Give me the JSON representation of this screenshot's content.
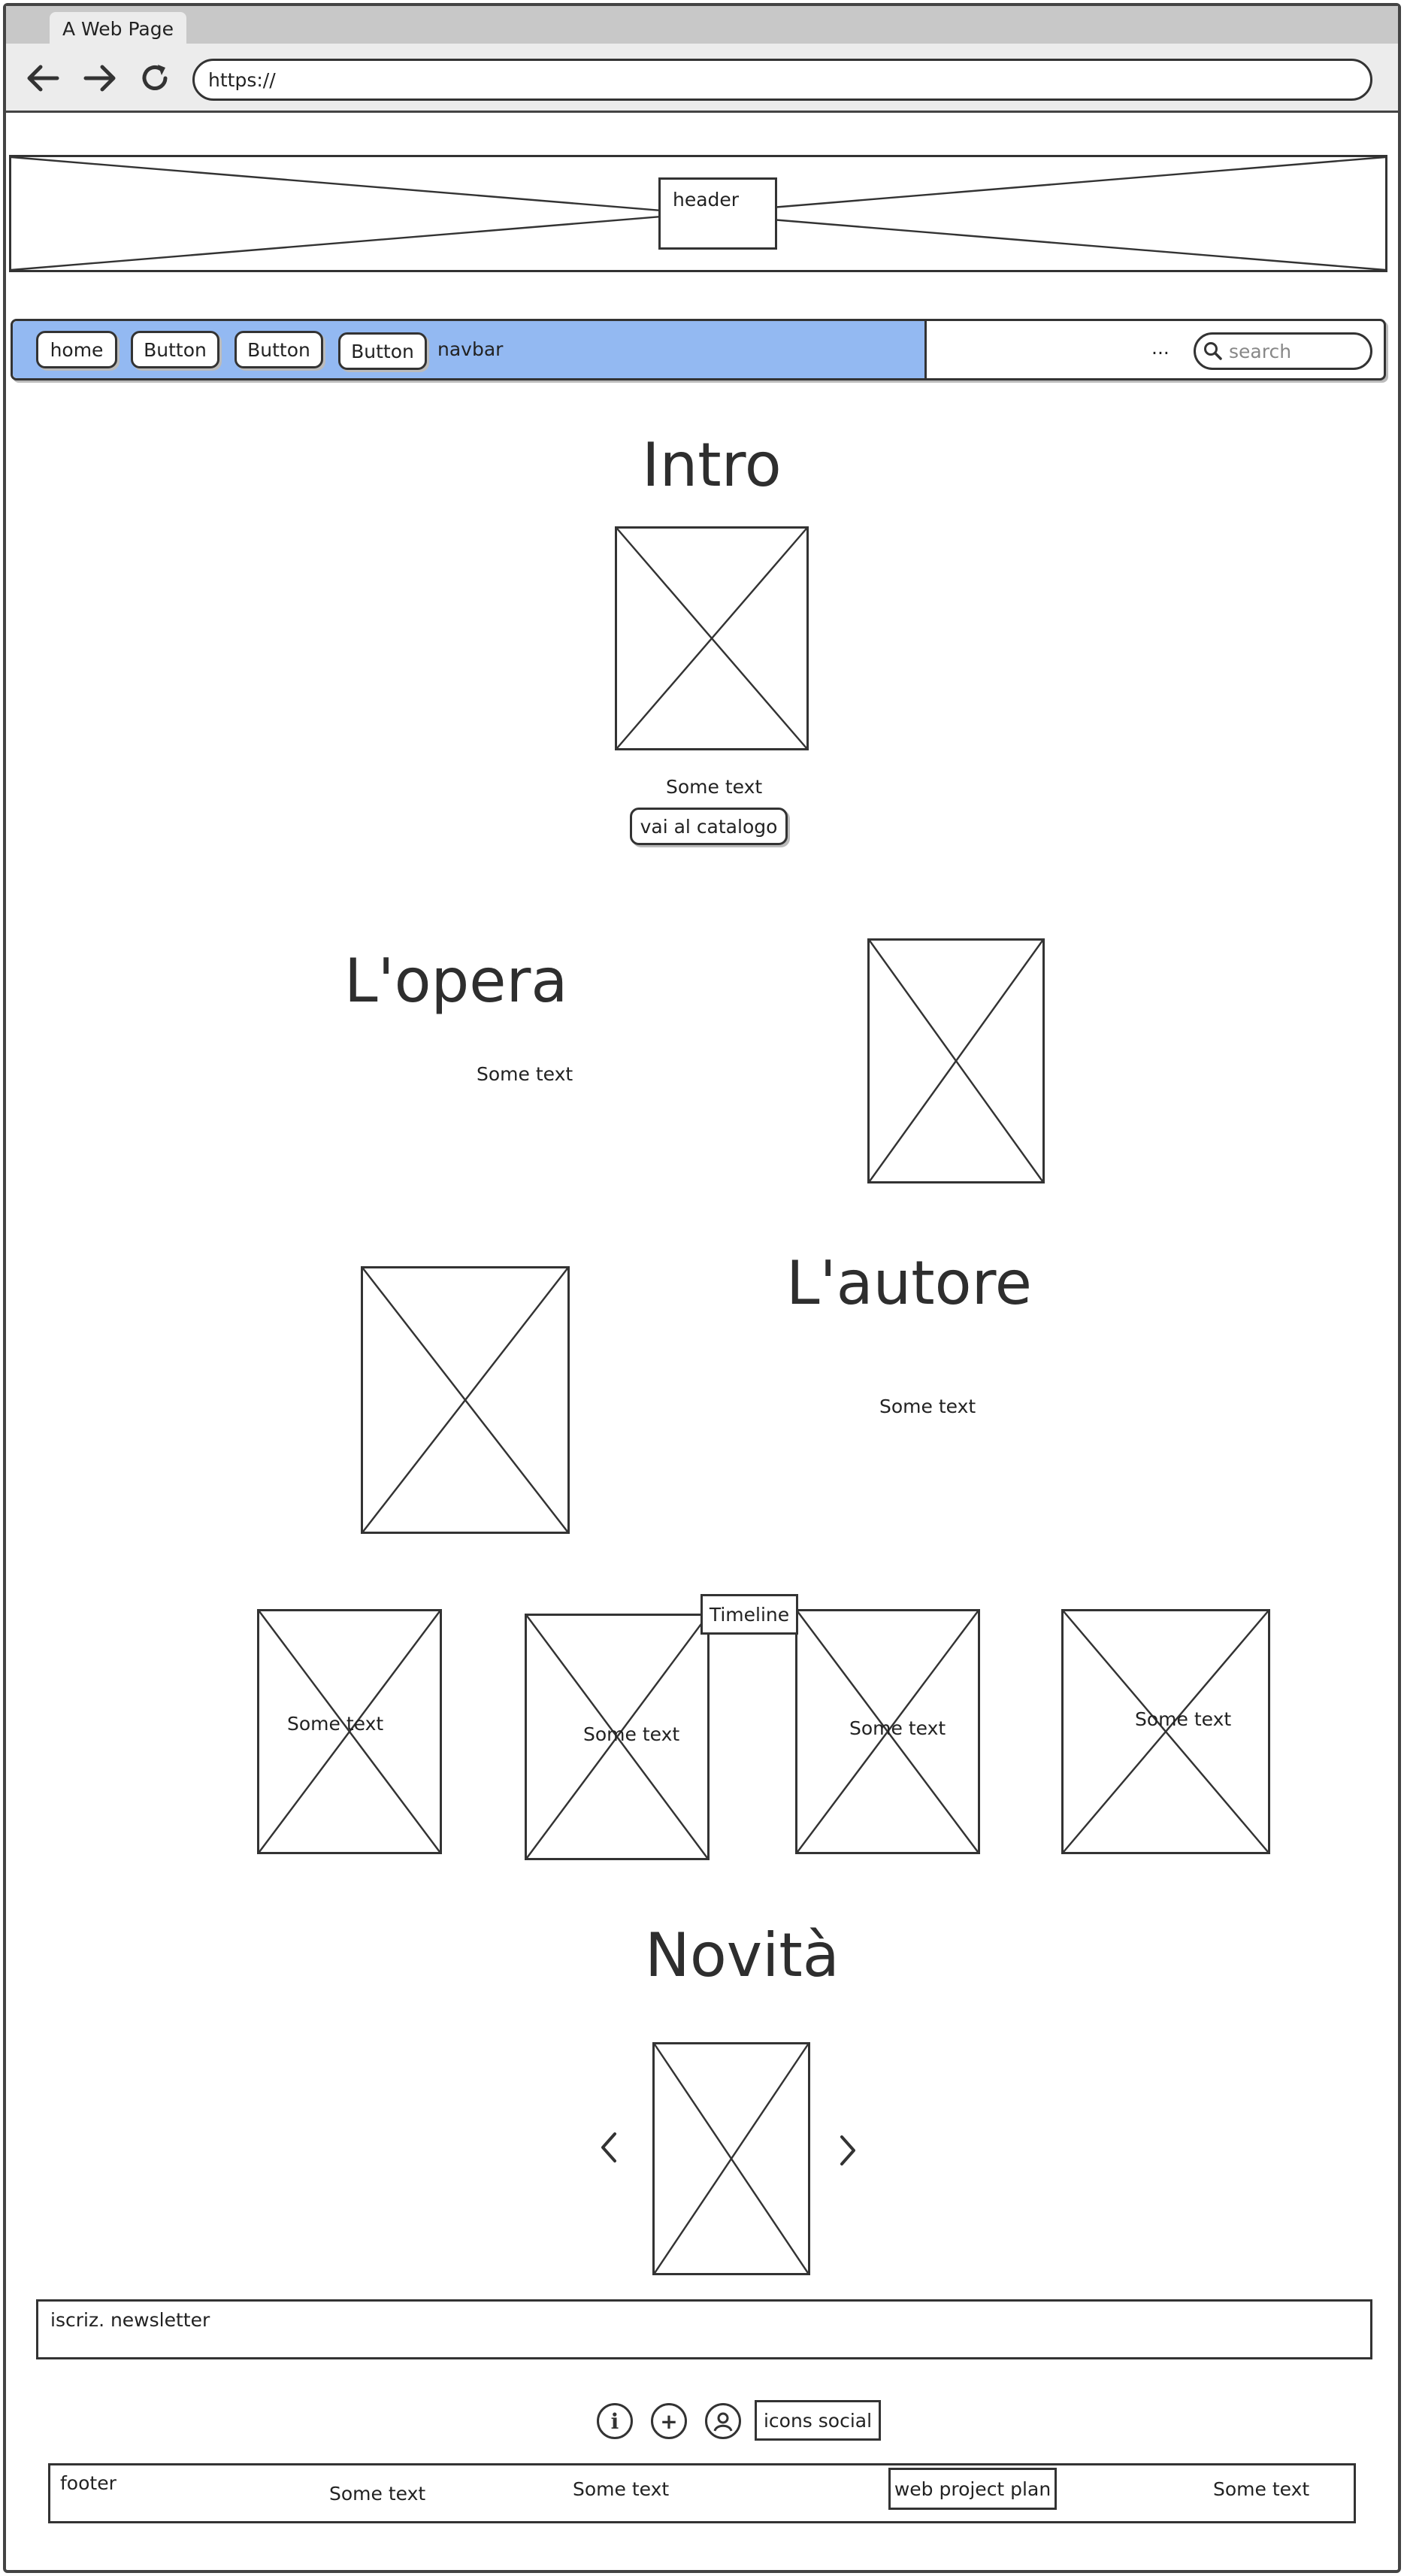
{
  "browser": {
    "tab_title": "A Web Page",
    "url": "https://"
  },
  "header": {
    "label": "header"
  },
  "navbar": {
    "buttons": [
      "home",
      "Button",
      "Button",
      "Button"
    ],
    "label": "navbar",
    "ellipsis": "...",
    "search_placeholder": "search",
    "accent_color": "#93b9f2"
  },
  "intro": {
    "title": "Intro",
    "text": "Some text",
    "button": "vai al catalogo"
  },
  "opera": {
    "title": "L'opera",
    "text": "Some text"
  },
  "autore": {
    "title": "L'autore",
    "text": "Some text"
  },
  "timeline": {
    "label": "Timeline",
    "items": [
      "Some text",
      "Some text",
      "Some text",
      "Some text"
    ]
  },
  "novita": {
    "title": "Novità"
  },
  "newsletter": {
    "label": "iscriz. newsletter"
  },
  "social": {
    "icons": [
      "info-icon",
      "add-circle-icon",
      "user-icon"
    ],
    "label": "icons social"
  },
  "footer": {
    "label": "footer",
    "texts": [
      "Some text",
      "Some text",
      "Some text"
    ],
    "plan_button": "web project plan"
  }
}
